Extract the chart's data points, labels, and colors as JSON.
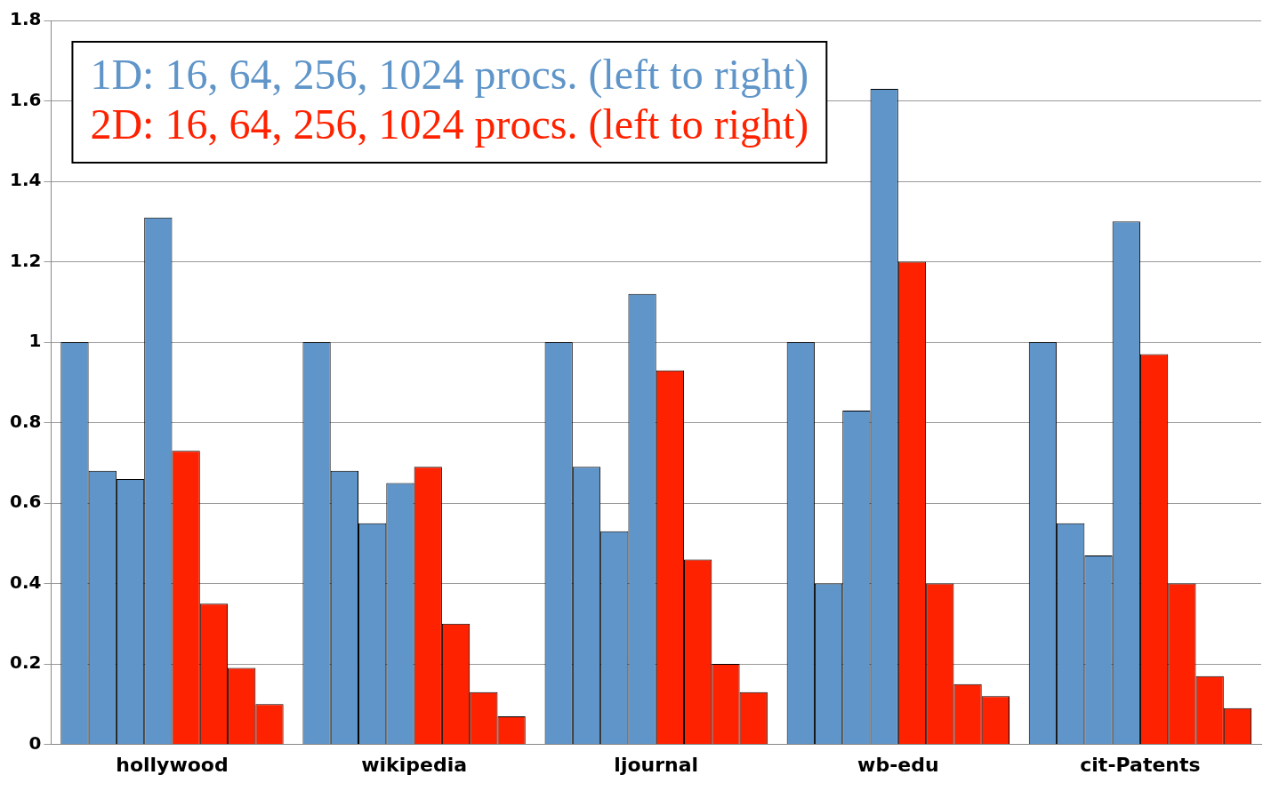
{
  "chart_data": {
    "type": "bar",
    "categories": [
      "hollywood",
      "wikipedia",
      "ljournal",
      "wb-edu",
      "cit-Patents"
    ],
    "series": [
      {
        "color": "#5f95c9",
        "values": [
          1,
          1,
          1,
          1,
          1
        ]
      },
      {
        "color": "#5f95c9",
        "values": [
          0.68,
          0.68,
          0.69,
          0.4,
          0.55
        ]
      },
      {
        "color": "#5f95c9",
        "values": [
          0.66,
          0.55,
          0.53,
          0.83,
          0.47
        ]
      },
      {
        "color": "#5f95c9",
        "values": [
          1.31,
          0.65,
          1.12,
          1.63,
          1.3
        ]
      },
      {
        "color": "#ff2200",
        "values": [
          0.73,
          0.69,
          0.93,
          1.2,
          0.97
        ]
      },
      {
        "color": "#ff2200",
        "values": [
          0.35,
          0.3,
          0.46,
          0.4,
          0.4
        ]
      },
      {
        "color": "#ff2200",
        "values": [
          0.19,
          0.13,
          0.2,
          0.15,
          0.17
        ]
      },
      {
        "color": "#ff2200",
        "values": [
          0.1,
          0.07,
          0.13,
          0.12,
          0.09
        ]
      }
    ],
    "ylim": [
      0,
      1.8
    ],
    "yticks": [
      0,
      0.2,
      0.4,
      0.6,
      0.8,
      1,
      1.2,
      1.4,
      1.6,
      1.8
    ],
    "grid": "y",
    "legend": false,
    "annotations": [
      "1D: 16, 64, 256, 1024 procs. (left to right)",
      "2D: 16, 64, 256, 1024 procs. (left to right)"
    ]
  }
}
